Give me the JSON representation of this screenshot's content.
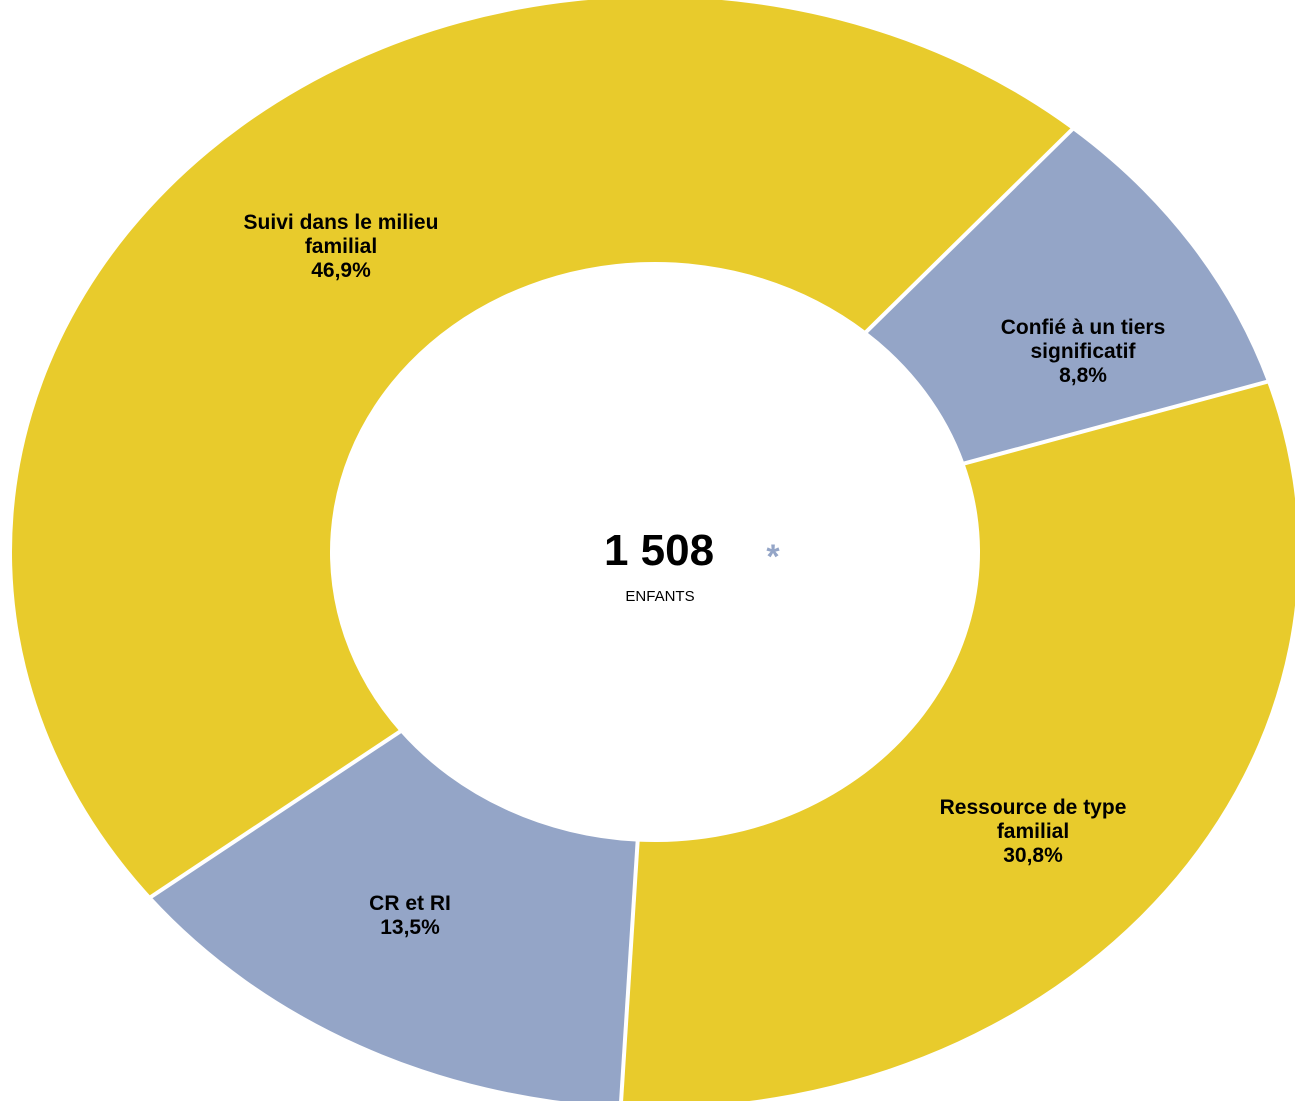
{
  "chart_data": {
    "type": "pie",
    "variant": "donut",
    "categories": [
      "Confié à un tiers significatif",
      "Ressource de type familial",
      "CR et RI",
      "Suivi dans le milieu familial"
    ],
    "values": [
      8.8,
      30.8,
      13.5,
      46.9
    ],
    "value_labels": [
      "8,8%",
      "30,8%",
      "13,5%",
      "46,9%"
    ],
    "label_lines": [
      [
        "Confié à un tiers",
        "significatif"
      ],
      [
        "Ressource de type",
        "familial"
      ],
      [
        "CR et RI"
      ],
      [
        "Suivi dans le milieu",
        "familial"
      ]
    ],
    "colors": [
      "#94a5c7",
      "#e8cb2c",
      "#94a5c7",
      "#e8cb2c"
    ],
    "legend": "none",
    "center": {
      "total": "1 508",
      "mark": "*",
      "mark_color": "#94a5c7",
      "unit": "ENFANTS"
    }
  }
}
